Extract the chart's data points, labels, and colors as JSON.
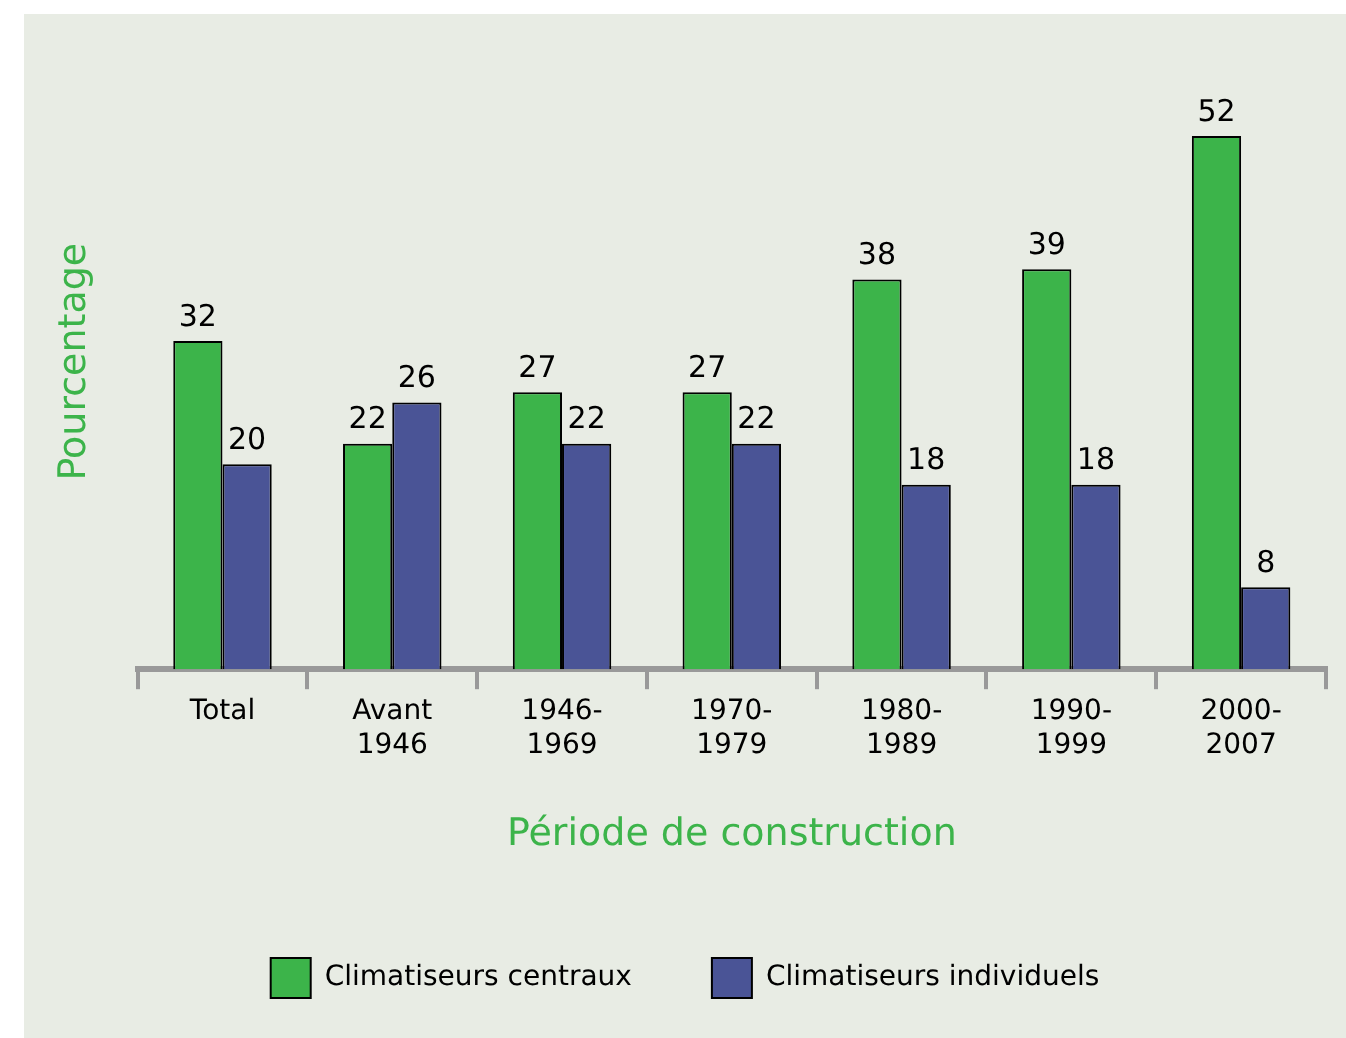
{
  "chart_data": {
    "type": "bar",
    "xlabel": "Période de construction",
    "ylabel": "Pourcentage",
    "categories": [
      "Total",
      "Avant 1946",
      "1946-1969",
      "1970-1979",
      "1980-1989",
      "1990-1999",
      "2000-2007"
    ],
    "series": [
      {
        "name": "Climatiseurs centraux",
        "color": "#3cb44a",
        "values": [
          32,
          22,
          27,
          27,
          38,
          39,
          52
        ]
      },
      {
        "name": "Climatiseurs individuels",
        "color": "#4a5496",
        "values": [
          20,
          26,
          22,
          22,
          18,
          18,
          8
        ]
      }
    ],
    "data_labels": true,
    "legend": "bottom",
    "grid": false
  }
}
